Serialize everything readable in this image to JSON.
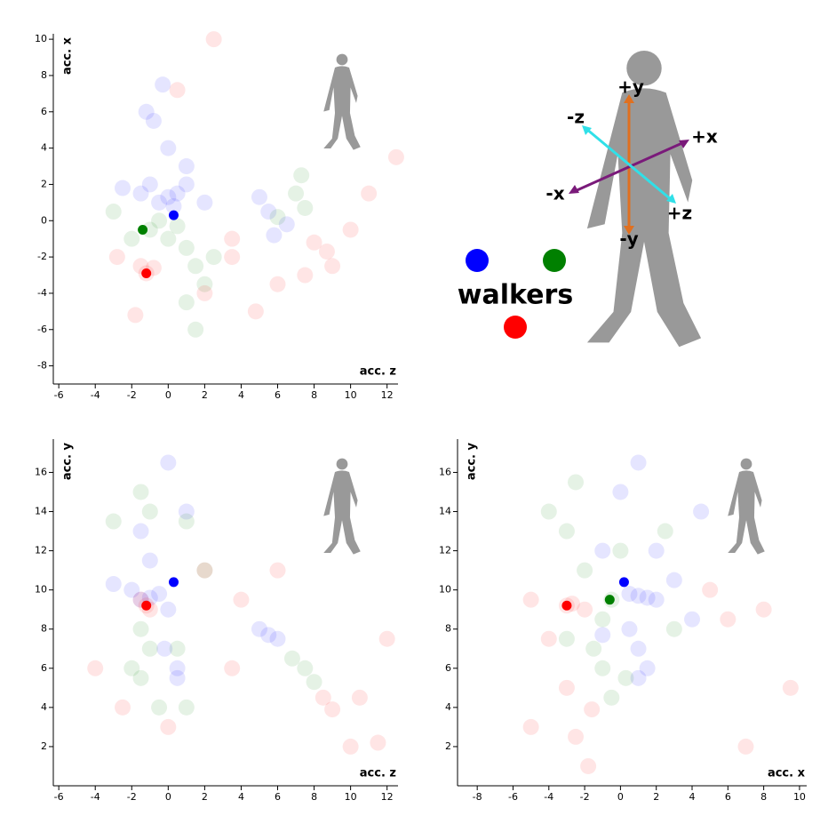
{
  "chart_data": [
    {
      "type": "scatter",
      "xlabel": "acc. z",
      "ylabel": "acc. x",
      "xlim": [
        -6.3,
        12.6
      ],
      "ylim": [
        -9,
        10.3
      ],
      "xticks": [
        -6,
        -4,
        -2,
        0,
        2,
        4,
        6,
        8,
        10,
        12
      ],
      "yticks": [
        -8,
        -6,
        -4,
        -2,
        0,
        2,
        4,
        6,
        8,
        10
      ],
      "series": [
        {
          "color": "#0000ff",
          "opacity": 0.1,
          "x": [
            0,
            0.5,
            -0.5,
            1,
            -1,
            0.3,
            -1.5,
            5.8,
            5.5,
            5,
            6.5,
            -1.2,
            -0.8,
            0,
            1,
            -2.5,
            -0.3,
            2
          ],
          "values": [
            1.3,
            1.5,
            1,
            2,
            2,
            0.8,
            1.5,
            -0.8,
            0.5,
            1.3,
            -0.2,
            6,
            5.5,
            4,
            3,
            1.8,
            7.5,
            1
          ]
        },
        {
          "color": "#008000",
          "opacity": 0.1,
          "x": [
            -1,
            0,
            1,
            1.5,
            0.5,
            2,
            -2,
            7.5,
            7,
            7.3,
            6,
            1,
            -0.5,
            2.5,
            -3,
            1.5
          ],
          "values": [
            -0.5,
            -1,
            -1.5,
            -2.5,
            -0.3,
            -3.5,
            -1,
            0.7,
            1.5,
            2.5,
            0.2,
            -4.5,
            0,
            -2,
            0.5,
            -6
          ]
        },
        {
          "color": "#ff0000",
          "opacity": 0.1,
          "x": [
            -1.2,
            -0.8,
            -1.5,
            8.7,
            9,
            8,
            10,
            2,
            3.5,
            6,
            4.8,
            -1.8,
            -2.8,
            0.5,
            2.5,
            11,
            12.5,
            3.5,
            7.5
          ],
          "values": [
            -2.9,
            -2.6,
            -2.5,
            -1.7,
            -2.5,
            -1.2,
            -0.5,
            -4,
            -1,
            -3.5,
            -5,
            -5.2,
            -2,
            7.2,
            10,
            1.5,
            3.5,
            -2,
            -3
          ]
        },
        {
          "color": "#0000ff",
          "opacity": 1,
          "x": [
            0.3
          ],
          "values": [
            0.3
          ]
        },
        {
          "color": "#008000",
          "opacity": 1,
          "x": [
            -1.4
          ],
          "values": [
            -0.5
          ]
        },
        {
          "color": "#ff0000",
          "opacity": 1,
          "x": [
            -1.2
          ],
          "values": [
            -2.9
          ]
        }
      ]
    },
    {
      "type": "scatter",
      "xlabel": "acc. z",
      "ylabel": "acc. y",
      "xlim": [
        -6.3,
        12.6
      ],
      "ylim": [
        0,
        17.7
      ],
      "xticks": [
        -6,
        -4,
        -2,
        0,
        2,
        4,
        6,
        8,
        10,
        12
      ],
      "yticks": [
        2,
        4,
        6,
        8,
        10,
        12,
        14,
        16
      ],
      "series": [
        {
          "color": "#0000ff",
          "opacity": 0.1,
          "x": [
            -1,
            -0.5,
            -1.5,
            0,
            -2,
            5.5,
            6,
            5,
            0.5,
            0.5,
            -1,
            0,
            -1.5,
            1,
            -3,
            -0.2
          ],
          "values": [
            9.6,
            9.8,
            9.5,
            9,
            10,
            7.7,
            7.5,
            8,
            6,
            5.5,
            11.5,
            16.5,
            13,
            14,
            10.3,
            7
          ]
        },
        {
          "color": "#008000",
          "opacity": 0.1,
          "x": [
            -1.5,
            -1,
            -1.5,
            -0.5,
            0.5,
            6.8,
            8,
            7.5,
            -1.5,
            -1,
            1,
            -3,
            2,
            -2,
            1
          ],
          "values": [
            8,
            7,
            5.5,
            4,
            7,
            6.5,
            5.3,
            6,
            15,
            14,
            13.5,
            13.5,
            11,
            6,
            4
          ]
        },
        {
          "color": "#ff0000",
          "opacity": 0.1,
          "x": [
            -1.2,
            -1,
            -1.5,
            9,
            8.5,
            10,
            11.5,
            4,
            2,
            -2.5,
            -4,
            0,
            6,
            10.5,
            12,
            3.5
          ],
          "values": [
            9.2,
            9,
            9.5,
            3.9,
            4.5,
            2,
            2.2,
            9.5,
            11,
            4,
            6,
            3,
            11,
            4.5,
            7.5,
            6
          ]
        },
        {
          "color": "#ff0000",
          "opacity": 1,
          "x": [
            -1.2
          ],
          "values": [
            9.2
          ]
        },
        {
          "color": "#0000ff",
          "opacity": 1,
          "x": [
            0.3
          ],
          "values": [
            10.4
          ]
        }
      ]
    },
    {
      "type": "scatter",
      "xlabel": "acc. x",
      "ylabel": "acc. y",
      "xlim": [
        -9.1,
        10.4
      ],
      "ylim": [
        0,
        17.7
      ],
      "xticks": [
        -8,
        -6,
        -4,
        -2,
        0,
        2,
        4,
        6,
        8,
        10
      ],
      "yticks": [
        2,
        4,
        6,
        8,
        10,
        12,
        14,
        16
      ],
      "series": [
        {
          "color": "#0000ff",
          "opacity": 0.1,
          "x": [
            1,
            1.5,
            0.5,
            2,
            -1,
            0.5,
            1,
            1.5,
            1,
            0,
            1,
            2,
            4,
            -1,
            3,
            4.5
          ],
          "values": [
            9.7,
            9.6,
            9.8,
            9.5,
            7.7,
            8,
            7,
            6,
            5.5,
            15,
            16.5,
            12,
            8.5,
            12,
            10.5,
            14
          ]
        },
        {
          "color": "#008000",
          "opacity": 0.1,
          "x": [
            -0.5,
            -1,
            -1.5,
            -1,
            0.3,
            -2,
            -3,
            -4,
            -2.5,
            0,
            -3,
            2.5,
            -0.5,
            3
          ],
          "values": [
            9.5,
            8.5,
            7,
            6,
            5.5,
            11,
            13,
            14,
            15.5,
            12,
            7.5,
            13,
            4.5,
            8
          ]
        },
        {
          "color": "#ff0000",
          "opacity": 0.1,
          "x": [
            -3,
            -2.7,
            -2,
            -1.6,
            -1.8,
            -2.5,
            -5,
            -4,
            -3,
            5,
            8,
            9.5,
            7,
            -5,
            6
          ],
          "values": [
            9.2,
            9.3,
            9,
            3.9,
            1,
            2.5,
            9.5,
            7.5,
            5,
            10,
            9,
            5,
            2,
            3,
            8.5
          ]
        },
        {
          "color": "#ff0000",
          "opacity": 1,
          "x": [
            -3
          ],
          "values": [
            9.2
          ]
        },
        {
          "color": "#008000",
          "opacity": 1,
          "x": [
            -0.6
          ],
          "values": [
            9.5
          ]
        },
        {
          "color": "#0000ff",
          "opacity": 1,
          "x": [
            0.2
          ],
          "values": [
            10.4
          ]
        }
      ]
    }
  ],
  "diagram": {
    "title": "walkers",
    "axes": [
      "+y",
      "-y",
      "+x",
      "-x",
      "-z",
      "+z"
    ]
  }
}
